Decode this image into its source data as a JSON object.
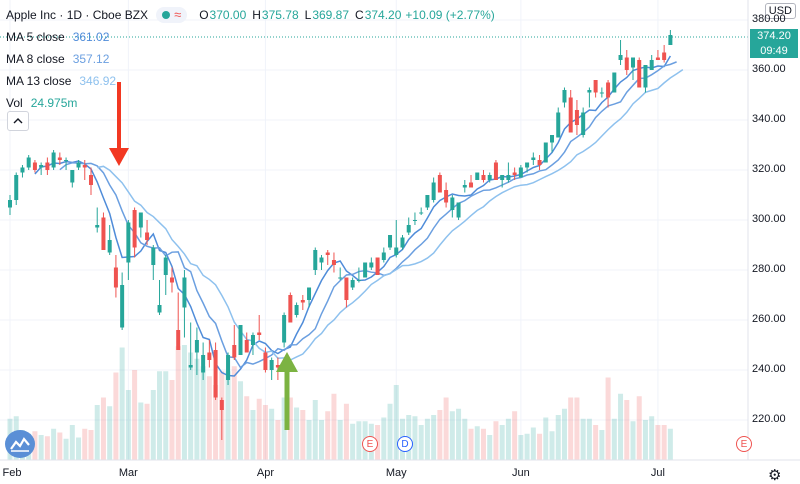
{
  "legend": {
    "symbol": "Apple Inc · 1D · Cboe BZX",
    "ohlc": [
      {
        "label": "O",
        "value": "370.00"
      },
      {
        "label": "H",
        "value": "375.78"
      },
      {
        "label": "L",
        "value": "369.87"
      },
      {
        "label": "C",
        "value": "374.20"
      }
    ],
    "change": "+10.09 (+2.77%)",
    "ma": [
      {
        "name": "MA 5 close",
        "value": "361.02",
        "color": "#4f8cd9"
      },
      {
        "name": "MA 8 close",
        "value": "357.12",
        "color": "#6b9fe0"
      },
      {
        "name": "MA 13 close",
        "value": "346.92",
        "color": "#8ec1ee"
      }
    ],
    "volume_label": "Vol",
    "volume_value": "24.975m"
  },
  "price_axis": {
    "currency": "USD",
    "last_price": "374.20",
    "countdown": "09:49"
  },
  "events": [
    {
      "letter": "E",
      "kind": "earnings"
    },
    {
      "letter": "D",
      "kind": "dividend"
    },
    {
      "letter": "E",
      "kind": "earnings"
    }
  ],
  "colors": {
    "up": "#26a69a",
    "down": "#ef5350",
    "arrow_down": "#f23822",
    "arrow_up": "#7cb342"
  },
  "icons": [
    "tradingview-logo-icon",
    "settings-gear-icon",
    "collapse-chevron-icon"
  ],
  "chart_data": {
    "type": "candlestick",
    "ylim": [
      200,
      385
    ],
    "yticks": [
      220,
      240,
      260,
      280,
      300,
      320,
      340,
      360,
      380
    ],
    "xticks": [
      "Feb",
      "Mar",
      "Apr",
      "May",
      "Jun",
      "Jul"
    ],
    "annotations": [
      {
        "type": "arrow-down",
        "near_date": "Feb 21"
      },
      {
        "type": "arrow-up",
        "near_date": "Apr 13"
      }
    ],
    "candles": [
      [
        "Feb 3",
        305,
        310,
        302,
        308,
        33
      ],
      [
        "Feb 4",
        308,
        319,
        306,
        318,
        35
      ],
      [
        "Feb 5",
        319,
        322,
        317,
        321,
        24
      ],
      [
        "Feb 6",
        321,
        326,
        320,
        325,
        21
      ],
      [
        "Feb 7",
        323,
        324,
        319,
        320,
        23
      ],
      [
        "Feb 10",
        321,
        323,
        318,
        322,
        20
      ],
      [
        "Feb 11",
        323,
        325,
        318,
        320,
        19
      ],
      [
        "Feb 12",
        321,
        328,
        320,
        327,
        25
      ],
      [
        "Feb 13",
        325,
        327,
        322,
        324,
        22
      ],
      [
        "Feb 14",
        324,
        325,
        320,
        324,
        17
      ],
      [
        "Feb 18",
        315,
        320,
        313,
        320,
        28
      ],
      [
        "Feb 19",
        321,
        324,
        320,
        323,
        18
      ],
      [
        "Feb 20",
        322,
        324,
        316,
        321,
        25
      ],
      [
        "Feb 21",
        318,
        321,
        310,
        314,
        24
      ],
      [
        "Feb 24",
        297,
        305,
        295,
        298,
        44
      ],
      [
        "Feb 25",
        301,
        303,
        288,
        288,
        50
      ],
      [
        "Feb 26",
        287,
        298,
        286,
        292,
        43
      ],
      [
        "Feb 27",
        281,
        286,
        269,
        273,
        70
      ],
      [
        "Feb 28",
        257,
        279,
        256,
        274,
        90
      ],
      [
        "Mar 2",
        283,
        300,
        276,
        299,
        56
      ],
      [
        "Mar 3",
        304,
        305,
        285,
        289,
        72
      ],
      [
        "Mar 4",
        297,
        303,
        293,
        303,
        46
      ],
      [
        "Mar 5",
        295,
        300,
        290,
        292,
        45
      ],
      [
        "Mar 6",
        282,
        290,
        276,
        289,
        56
      ],
      [
        "Mar 9",
        263,
        276,
        262,
        266,
        71
      ],
      [
        "Mar 10",
        278,
        286,
        270,
        285,
        71
      ],
      [
        "Mar 11",
        277,
        281,
        271,
        275,
        64
      ],
      [
        "Mar 12",
        256,
        271,
        248,
        248,
        91
      ],
      [
        "Mar 13",
        265,
        280,
        253,
        277,
        92
      ],
      [
        "Mar 16",
        241,
        259,
        240,
        242,
        86
      ],
      [
        "Mar 17",
        247,
        257,
        238,
        252,
        81
      ],
      [
        "Mar 18",
        239,
        251,
        236,
        246,
        75
      ],
      [
        "Mar 19",
        247,
        252,
        241,
        244,
        67
      ],
      [
        "Mar 20",
        248,
        251,
        228,
        229,
        60
      ],
      [
        "Mar 23",
        228,
        229,
        212,
        224,
        71
      ],
      [
        "Mar 24",
        236,
        247,
        234,
        246,
        71
      ],
      [
        "Mar 25",
        250,
        258,
        244,
        245,
        75
      ],
      [
        "Mar 26",
        246,
        258,
        246,
        258,
        63
      ],
      [
        "Mar 27",
        252,
        255,
        247,
        247,
        51
      ],
      [
        "Mar 30",
        250,
        255,
        246,
        254,
        40
      ],
      [
        "Mar 31",
        255,
        262,
        252,
        254,
        49
      ],
      [
        "Apr 1",
        247,
        249,
        239,
        240,
        44
      ],
      [
        "Apr 2",
        240,
        245,
        236,
        244,
        41
      ],
      [
        "Apr 3",
        242,
        245,
        236,
        241,
        32
      ],
      [
        "Apr 6",
        251,
        263,
        249,
        262,
        50
      ],
      [
        "Apr 7",
        270,
        271,
        259,
        259,
        50
      ],
      [
        "Apr 8",
        262,
        267,
        261,
        266,
        42
      ],
      [
        "Apr 9",
        268,
        270,
        264,
        267,
        40
      ],
      [
        "Apr 13",
        268,
        273,
        265,
        273,
        32
      ],
      [
        "Apr 14",
        280,
        289,
        278,
        288,
        48
      ],
      [
        "Apr 15",
        283,
        286,
        280,
        285,
        32
      ],
      [
        "Apr 16",
        287,
        288,
        282,
        286,
        39
      ],
      [
        "Apr 17",
        284,
        287,
        279,
        282,
        53
      ],
      [
        "Apr 20",
        277,
        281,
        276,
        277,
        32
      ],
      [
        "Apr 21",
        277,
        277,
        265,
        268,
        45
      ],
      [
        "Apr 22",
        273,
        277,
        272,
        276,
        29
      ],
      [
        "Apr 23",
        276,
        281,
        275,
        276,
        31
      ],
      [
        "Apr 24",
        277,
        283,
        277,
        283,
        31
      ],
      [
        "Apr 27",
        281,
        285,
        280,
        283,
        29
      ],
      [
        "Apr 28",
        285,
        285,
        278,
        278,
        28
      ],
      [
        "Apr 29",
        284,
        289,
        283,
        287,
        34
      ],
      [
        "Apr 30",
        289,
        294,
        288,
        294,
        45
      ],
      [
        "May 1",
        286,
        300,
        285,
        289,
        60
      ],
      [
        "May 4",
        289,
        294,
        288,
        293,
        33
      ],
      [
        "May 5",
        295,
        301,
        294,
        298,
        36
      ],
      [
        "May 6",
        300,
        303,
        298,
        300,
        35
      ],
      [
        "May 7",
        303,
        305,
        302,
        303,
        28
      ],
      [
        "May 8",
        305,
        310,
        304,
        310,
        33
      ],
      [
        "May 11",
        308,
        317,
        307,
        315,
        36
      ],
      [
        "May 12",
        318,
        319,
        311,
        311,
        40
      ],
      [
        "May 13",
        312,
        315,
        305,
        307,
        50
      ],
      [
        "May 14",
        304,
        310,
        301,
        309,
        39
      ],
      [
        "May 15",
        301,
        307,
        300,
        307,
        41
      ],
      [
        "May 18",
        313,
        316,
        311,
        314,
        33
      ],
      [
        "May 19",
        315,
        318,
        313,
        313,
        25
      ],
      [
        "May 20",
        316,
        319,
        316,
        319,
        27
      ],
      [
        "May 21",
        318,
        320,
        315,
        316,
        25
      ],
      [
        "May 22",
        316,
        319,
        315,
        318,
        20
      ],
      [
        "May 26",
        323,
        324,
        316,
        316,
        31
      ],
      [
        "May 27",
        316,
        318,
        313,
        318,
        28
      ],
      [
        "May 28",
        316,
        323,
        315,
        318,
        33
      ],
      [
        "May 29",
        319,
        321,
        316,
        318,
        39
      ],
      [
        "Jun 1",
        317,
        322,
        317,
        321,
        20
      ],
      [
        "Jun 2",
        321,
        323,
        319,
        323,
        21
      ],
      [
        "Jun 3",
        324,
        327,
        322,
        325,
        26
      ],
      [
        "Jun 4",
        324,
        326,
        320,
        322,
        21
      ],
      [
        "Jun 5",
        323,
        331,
        323,
        331,
        34
      ],
      [
        "Jun 8",
        331,
        334,
        327,
        334,
        23
      ],
      [
        "Jun 9",
        333,
        345,
        333,
        343,
        36
      ],
      [
        "Jun 10",
        347,
        353,
        345,
        352,
        41
      ],
      [
        "Jun 11",
        349,
        352,
        335,
        335,
        50
      ],
      [
        "Jun 12",
        344,
        348,
        334,
        338,
        50
      ],
      [
        "Jun 15",
        334,
        345,
        333,
        343,
        33
      ],
      [
        "Jun 16",
        351,
        353,
        345,
        352,
        33
      ],
      [
        "Jun 17",
        356,
        356,
        349,
        351,
        28
      ],
      [
        "Jun 18",
        351,
        353,
        349,
        351,
        24
      ],
      [
        "Jun 19",
        355,
        356,
        345,
        349,
        66
      ],
      [
        "Jun 22",
        351,
        359,
        351,
        359,
        33
      ],
      [
        "Jun 23",
        364,
        372,
        362,
        366,
        53
      ],
      [
        "Jun 24",
        365,
        368,
        358,
        360,
        48
      ],
      [
        "Jun 25",
        361,
        365,
        356,
        365,
        31
      ],
      [
        "Jun 26",
        364,
        365,
        353,
        353,
        51
      ],
      [
        "Jun 29",
        353,
        362,
        351,
        362,
        32
      ],
      [
        "Jun 30",
        360,
        366,
        360,
        364,
        35
      ],
      [
        "Jul 1",
        365,
        368,
        364,
        364,
        28
      ],
      [
        "Jul 2",
        367,
        370,
        363,
        364,
        28
      ],
      [
        "Jul 6",
        370,
        376,
        370,
        374,
        25
      ]
    ]
  }
}
